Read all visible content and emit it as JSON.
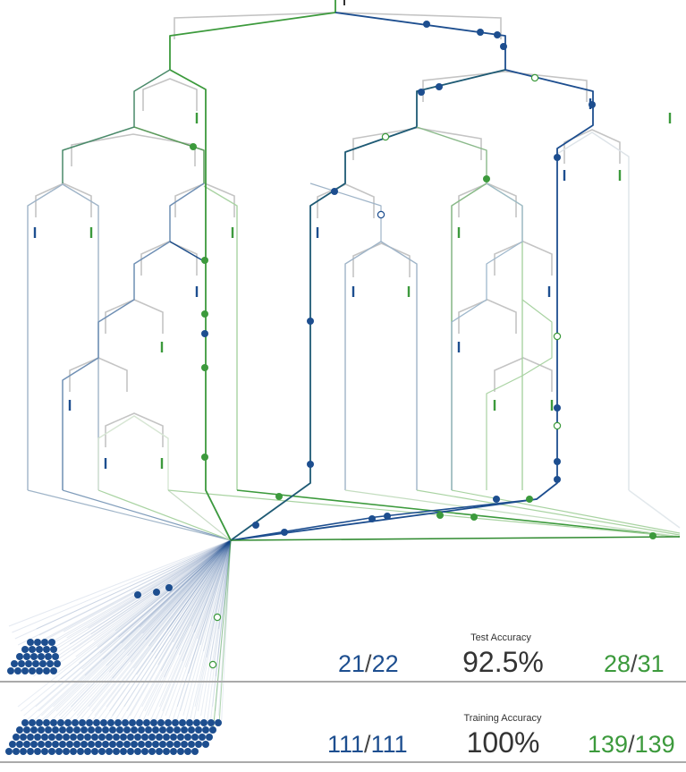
{
  "test": {
    "label": "Test Accuracy",
    "value": "92.5%",
    "blue_correct": "21",
    "blue_total": "22",
    "green_correct": "28",
    "green_total": "31"
  },
  "training": {
    "label": "Training Accuracy",
    "value": "100%",
    "blue_correct": "111",
    "blue_total": "111",
    "green_correct": "139",
    "green_total": "139"
  },
  "separator": "/",
  "colors": {
    "blue": "#1d4e8f",
    "green": "#3c9a3c",
    "grey": "#c4c4c4",
    "text": "#333333"
  }
}
